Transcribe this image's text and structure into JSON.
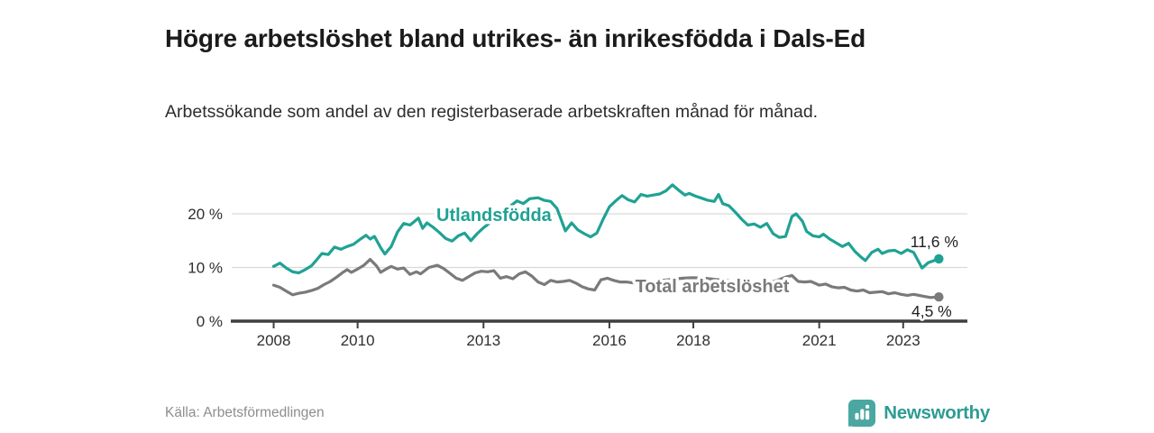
{
  "header": {
    "title": "Högre arbetslöshet bland utrikes- än inrikesfödda i Dals-Ed",
    "subtitle": "Arbetssökande som andel av den registerbaserade arbetskraften månad för månad."
  },
  "footer": {
    "source": "Källa: Arbetsförmedlingen",
    "brand": "Newsworthy"
  },
  "colors": {
    "foreign_born_line": "#1FA294",
    "total_line": "#7A7A7A",
    "grid": "#D9D9D9",
    "axis": "#3F3F3F",
    "tick_text": "#2F2F2F",
    "end_label_text": "#222222",
    "title_text": "#1B1B1B",
    "source_text": "#8D8D8D",
    "brand_badge": "#4BA7A1",
    "brand_text": "#2D9C93"
  },
  "chart_data": {
    "type": "line",
    "title": "Högre arbetslöshet bland utrikes- än inrikesfödda i Dals-Ed",
    "subtitle": "Arbetssökande som andel av den registerbaserade arbetskraften månad för månad.",
    "source": "Källa: Arbetsförmedlingen",
    "unit": "%",
    "grid": "horizontal",
    "legend_position": "inline-labels",
    "x_axis": {
      "range": [
        2007.0,
        2024.53
      ],
      "ticks": [
        2008,
        2010,
        2013,
        2016,
        2018,
        2021,
        2023
      ]
    },
    "y_axis": {
      "range": [
        0,
        27.9
      ],
      "ticks": [
        {
          "value": 0,
          "label": "0 %"
        },
        {
          "value": 10,
          "label": "10 %"
        },
        {
          "value": 20,
          "label": "20 %"
        }
      ]
    },
    "series": [
      {
        "id": "utlandsfodda",
        "name": "Utlandsfödda",
        "color": "#1FA294",
        "label_pos": {
          "x": 2013.25,
          "y": 19.8
        },
        "end_label": "11,6 %",
        "end_value": 11.6,
        "end_label_offset": {
          "dx": -5,
          "dy": -19
        },
        "points": [
          [
            2008.0,
            10.2
          ],
          [
            2008.15,
            10.8
          ],
          [
            2008.3,
            9.9
          ],
          [
            2008.45,
            9.2
          ],
          [
            2008.6,
            9.0
          ],
          [
            2008.75,
            9.6
          ],
          [
            2008.9,
            10.3
          ],
          [
            2009.0,
            11.2
          ],
          [
            2009.15,
            12.6
          ],
          [
            2009.3,
            12.4
          ],
          [
            2009.45,
            13.8
          ],
          [
            2009.6,
            13.4
          ],
          [
            2009.75,
            13.9
          ],
          [
            2009.9,
            14.3
          ],
          [
            2010.05,
            15.2
          ],
          [
            2010.2,
            16.0
          ],
          [
            2010.3,
            15.3
          ],
          [
            2010.4,
            15.8
          ],
          [
            2010.55,
            13.7
          ],
          [
            2010.65,
            12.5
          ],
          [
            2010.8,
            13.9
          ],
          [
            2010.95,
            16.6
          ],
          [
            2011.1,
            18.2
          ],
          [
            2011.25,
            17.9
          ],
          [
            2011.45,
            19.2
          ],
          [
            2011.55,
            17.3
          ],
          [
            2011.65,
            18.3
          ],
          [
            2011.8,
            17.5
          ],
          [
            2011.95,
            16.5
          ],
          [
            2012.1,
            15.4
          ],
          [
            2012.25,
            14.9
          ],
          [
            2012.4,
            15.9
          ],
          [
            2012.55,
            16.4
          ],
          [
            2012.7,
            15.0
          ],
          [
            2012.85,
            16.3
          ],
          [
            2013.0,
            17.4
          ],
          [
            2013.2,
            18.6
          ],
          [
            2013.4,
            19.8
          ],
          [
            2013.6,
            21.2
          ],
          [
            2013.8,
            22.4
          ],
          [
            2013.95,
            21.9
          ],
          [
            2014.1,
            22.8
          ],
          [
            2014.3,
            23.0
          ],
          [
            2014.45,
            22.5
          ],
          [
            2014.6,
            22.3
          ],
          [
            2014.75,
            21.0
          ],
          [
            2014.95,
            16.8
          ],
          [
            2015.1,
            18.3
          ],
          [
            2015.25,
            17.0
          ],
          [
            2015.4,
            16.3
          ],
          [
            2015.55,
            15.7
          ],
          [
            2015.7,
            16.4
          ],
          [
            2015.85,
            19.0
          ],
          [
            2016.0,
            21.3
          ],
          [
            2016.15,
            22.4
          ],
          [
            2016.3,
            23.4
          ],
          [
            2016.45,
            22.6
          ],
          [
            2016.6,
            22.2
          ],
          [
            2016.75,
            23.6
          ],
          [
            2016.9,
            23.3
          ],
          [
            2017.05,
            23.5
          ],
          [
            2017.2,
            23.7
          ],
          [
            2017.35,
            24.3
          ],
          [
            2017.5,
            25.4
          ],
          [
            2017.65,
            24.4
          ],
          [
            2017.8,
            23.5
          ],
          [
            2017.9,
            23.8
          ],
          [
            2018.05,
            23.3
          ],
          [
            2018.2,
            22.9
          ],
          [
            2018.35,
            22.5
          ],
          [
            2018.5,
            22.3
          ],
          [
            2018.6,
            23.6
          ],
          [
            2018.7,
            21.9
          ],
          [
            2018.85,
            21.5
          ],
          [
            2019.0,
            20.3
          ],
          [
            2019.15,
            19.0
          ],
          [
            2019.3,
            17.9
          ],
          [
            2019.45,
            18.1
          ],
          [
            2019.6,
            17.5
          ],
          [
            2019.75,
            18.2
          ],
          [
            2019.9,
            16.3
          ],
          [
            2020.05,
            15.6
          ],
          [
            2020.2,
            15.8
          ],
          [
            2020.35,
            19.5
          ],
          [
            2020.45,
            20.0
          ],
          [
            2020.6,
            18.6
          ],
          [
            2020.7,
            16.7
          ],
          [
            2020.85,
            15.9
          ],
          [
            2021.0,
            15.7
          ],
          [
            2021.1,
            16.2
          ],
          [
            2021.25,
            15.3
          ],
          [
            2021.4,
            14.6
          ],
          [
            2021.55,
            13.9
          ],
          [
            2021.7,
            14.5
          ],
          [
            2021.85,
            13.0
          ],
          [
            2022.0,
            11.9
          ],
          [
            2022.1,
            11.3
          ],
          [
            2022.25,
            12.8
          ],
          [
            2022.4,
            13.4
          ],
          [
            2022.5,
            12.6
          ],
          [
            2022.65,
            13.1
          ],
          [
            2022.8,
            13.2
          ],
          [
            2022.95,
            12.6
          ],
          [
            2023.1,
            13.3
          ],
          [
            2023.25,
            12.8
          ],
          [
            2023.45,
            9.9
          ],
          [
            2023.6,
            10.9
          ],
          [
            2023.85,
            11.6
          ]
        ]
      },
      {
        "id": "total",
        "name": "Total arbetslöshet",
        "color": "#7A7A7A",
        "label_pos": {
          "x": 2018.45,
          "y": 6.55
        },
        "end_label": "4,5 %",
        "end_value": 4.5,
        "end_label_offset": {
          "dx": -8,
          "dy": 16
        },
        "points": [
          [
            2008.0,
            6.7
          ],
          [
            2008.15,
            6.3
          ],
          [
            2008.3,
            5.6
          ],
          [
            2008.45,
            4.9
          ],
          [
            2008.6,
            5.2
          ],
          [
            2008.75,
            5.4
          ],
          [
            2008.9,
            5.7
          ],
          [
            2009.05,
            6.1
          ],
          [
            2009.2,
            6.8
          ],
          [
            2009.35,
            7.4
          ],
          [
            2009.5,
            8.2
          ],
          [
            2009.65,
            9.1
          ],
          [
            2009.75,
            9.6
          ],
          [
            2009.85,
            9.1
          ],
          [
            2010.0,
            9.7
          ],
          [
            2010.15,
            10.4
          ],
          [
            2010.3,
            11.5
          ],
          [
            2010.45,
            10.3
          ],
          [
            2010.55,
            9.1
          ],
          [
            2010.7,
            9.8
          ],
          [
            2010.8,
            10.2
          ],
          [
            2010.95,
            9.7
          ],
          [
            2011.1,
            9.9
          ],
          [
            2011.25,
            8.7
          ],
          [
            2011.4,
            9.2
          ],
          [
            2011.5,
            8.8
          ],
          [
            2011.7,
            10.0
          ],
          [
            2011.9,
            10.4
          ],
          [
            2012.05,
            9.8
          ],
          [
            2012.2,
            8.9
          ],
          [
            2012.35,
            8.0
          ],
          [
            2012.5,
            7.6
          ],
          [
            2012.65,
            8.3
          ],
          [
            2012.8,
            9.0
          ],
          [
            2012.95,
            9.3
          ],
          [
            2013.1,
            9.2
          ],
          [
            2013.25,
            9.4
          ],
          [
            2013.4,
            8.0
          ],
          [
            2013.55,
            8.3
          ],
          [
            2013.7,
            7.9
          ],
          [
            2013.85,
            8.8
          ],
          [
            2014.0,
            9.2
          ],
          [
            2014.15,
            8.4
          ],
          [
            2014.3,
            7.3
          ],
          [
            2014.45,
            6.8
          ],
          [
            2014.6,
            7.6
          ],
          [
            2014.75,
            7.3
          ],
          [
            2014.9,
            7.4
          ],
          [
            2015.05,
            7.6
          ],
          [
            2015.2,
            7.1
          ],
          [
            2015.35,
            6.4
          ],
          [
            2015.5,
            6.0
          ],
          [
            2015.65,
            5.8
          ],
          [
            2015.8,
            7.7
          ],
          [
            2015.95,
            8.0
          ],
          [
            2016.1,
            7.6
          ],
          [
            2016.25,
            7.3
          ],
          [
            2016.4,
            7.3
          ],
          [
            2016.6,
            7.1
          ],
          [
            2016.8,
            7.0
          ],
          [
            2017.0,
            7.3
          ],
          [
            2017.25,
            7.6
          ],
          [
            2017.5,
            7.8
          ],
          [
            2017.75,
            8.0
          ],
          [
            2018.0,
            8.1
          ],
          [
            2018.25,
            8.0
          ],
          [
            2018.5,
            7.8
          ],
          [
            2018.75,
            7.6
          ],
          [
            2019.0,
            7.4
          ],
          [
            2019.25,
            7.2
          ],
          [
            2019.5,
            7.0
          ],
          [
            2019.75,
            7.1
          ],
          [
            2020.0,
            7.6
          ],
          [
            2020.2,
            8.2
          ],
          [
            2020.35,
            8.5
          ],
          [
            2020.5,
            7.4
          ],
          [
            2020.65,
            7.3
          ],
          [
            2020.8,
            7.4
          ],
          [
            2021.0,
            6.7
          ],
          [
            2021.15,
            6.9
          ],
          [
            2021.3,
            6.4
          ],
          [
            2021.45,
            6.2
          ],
          [
            2021.6,
            6.3
          ],
          [
            2021.75,
            5.8
          ],
          [
            2021.9,
            5.6
          ],
          [
            2022.05,
            5.8
          ],
          [
            2022.2,
            5.3
          ],
          [
            2022.35,
            5.4
          ],
          [
            2022.5,
            5.5
          ],
          [
            2022.65,
            5.1
          ],
          [
            2022.8,
            5.3
          ],
          [
            2022.95,
            5.0
          ],
          [
            2023.1,
            4.8
          ],
          [
            2023.25,
            5.0
          ],
          [
            2023.5,
            4.6
          ],
          [
            2023.65,
            4.4
          ],
          [
            2023.85,
            4.5
          ]
        ]
      }
    ]
  }
}
